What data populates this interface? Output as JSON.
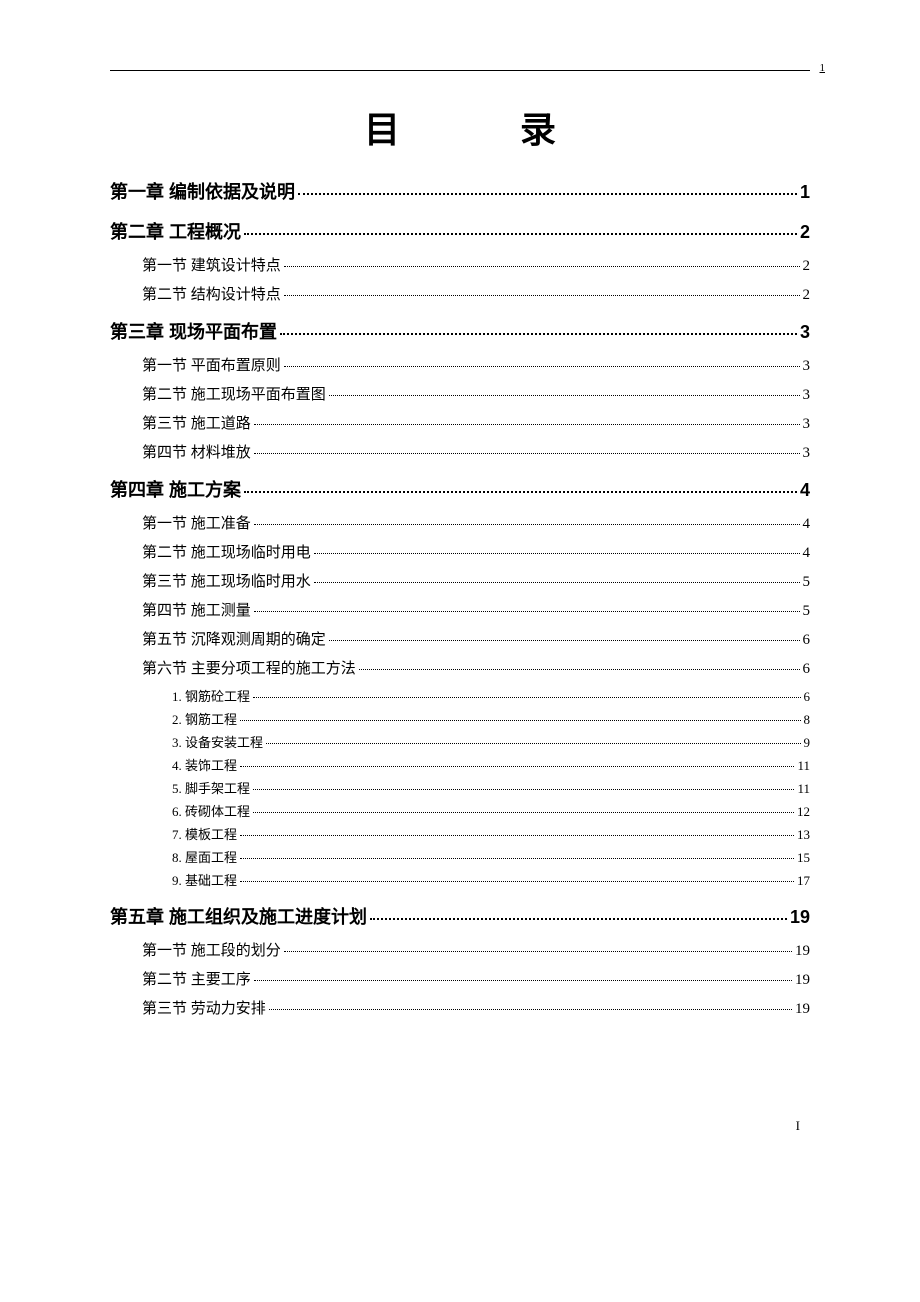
{
  "header": {
    "page_marker": "1"
  },
  "title": {
    "char1": "目",
    "char2": "录"
  },
  "toc": {
    "chapters": [
      {
        "label": "第一章 编制依据及说明",
        "page": "1",
        "sections": []
      },
      {
        "label": "第二章 工程概况",
        "page": "2",
        "sections": [
          {
            "label": "第一节 建筑设计特点",
            "page": "2"
          },
          {
            "label": "第二节 结构设计特点",
            "page": "2"
          }
        ]
      },
      {
        "label": "第三章 现场平面布置",
        "page": "3",
        "sections": [
          {
            "label": "第一节 平面布置原则",
            "page": "3"
          },
          {
            "label": "第二节 施工现场平面布置图",
            "page": "3"
          },
          {
            "label": "第三节 施工道路",
            "page": "3"
          },
          {
            "label": "第四节 材料堆放",
            "page": "3"
          }
        ]
      },
      {
        "label": "第四章 施工方案",
        "page": "4",
        "sections": [
          {
            "label": "第一节 施工准备",
            "page": "4"
          },
          {
            "label": "第二节 施工现场临时用电",
            "page": "4"
          },
          {
            "label": "第三节 施工现场临时用水",
            "page": "5"
          },
          {
            "label": "第四节 施工测量",
            "page": "5"
          },
          {
            "label": "第五节 沉降观测周期的确定",
            "page": "6"
          },
          {
            "label": "第六节 主要分项工程的施工方法",
            "page": "6",
            "subitems": [
              {
                "label": "1. 钢筋砼工程",
                "page": "6"
              },
              {
                "label": "2. 钢筋工程",
                "page": "8"
              },
              {
                "label": "3. 设备安装工程",
                "page": "9"
              },
              {
                "label": "4. 装饰工程",
                "page": "11"
              },
              {
                "label": "5. 脚手架工程",
                "page": "11"
              },
              {
                "label": "6. 砖砌体工程",
                "page": "12"
              },
              {
                "label": "7. 模板工程",
                "page": "13"
              },
              {
                "label": "8. 屋面工程",
                "page": "15"
              },
              {
                "label": "9. 基础工程",
                "page": "17"
              }
            ]
          }
        ]
      },
      {
        "label": "第五章 施工组织及施工进度计划",
        "page": "19",
        "sections": [
          {
            "label": "第一节 施工段的划分",
            "page": "19"
          },
          {
            "label": "第二节 主要工序",
            "page": "19"
          },
          {
            "label": "第三节 劳动力安排",
            "page": "19"
          }
        ]
      }
    ]
  },
  "footer": {
    "page_number": "I"
  }
}
